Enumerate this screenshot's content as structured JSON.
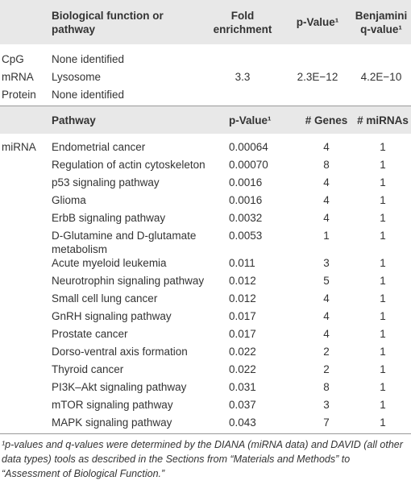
{
  "section1": {
    "header": {
      "function": "Biological function or pathway",
      "fold": "Fold enrichment",
      "p_value": "p-Value¹",
      "q_value": "Benjamini q-value¹"
    },
    "rows": [
      {
        "type": "CpG",
        "function": "None identified"
      },
      {
        "type": "mRNA",
        "function": "Lysosome",
        "fold": "3.3",
        "p_value": "2.3E−12",
        "q_value": "4.2E−10"
      },
      {
        "type": "Protein",
        "function": "None identified"
      }
    ]
  },
  "section2": {
    "header": {
      "pathway": "Pathway",
      "p_value": "p-Value¹",
      "genes": "# Genes",
      "mirnas": "# miRNAs"
    },
    "type": "miRNA",
    "rows": [
      [
        "Endometrial cancer",
        "0.00064",
        4,
        1
      ],
      [
        "Regulation of actin cytoskeleton",
        "0.00070",
        8,
        1
      ],
      [
        "p53 signaling pathway",
        "0.0016",
        4,
        1
      ],
      [
        "Glioma",
        "0.0016",
        4,
        1
      ],
      [
        "ErbB signaling pathway",
        "0.0032",
        4,
        1
      ],
      [
        "D-Glutamine and D-glutamate metabolism",
        "0.0053",
        1,
        1
      ],
      [
        "Acute myeloid leukemia",
        "0.011",
        3,
        1
      ],
      [
        "Neurotrophin signaling pathway",
        "0.012",
        5,
        1
      ],
      [
        "Small cell lung cancer",
        "0.012",
        4,
        1
      ],
      [
        "GnRH signaling pathway",
        "0.017",
        4,
        1
      ],
      [
        "Prostate cancer",
        "0.017",
        4,
        1
      ],
      [
        "Dorso-ventral axis formation",
        "0.022",
        2,
        1
      ],
      [
        "Thyroid cancer",
        "0.022",
        2,
        1
      ],
      [
        "PI3K–Akt signaling pathway",
        "0.031",
        8,
        1
      ],
      [
        "mTOR signaling pathway",
        "0.037",
        3,
        1
      ],
      [
        "MAPK signaling pathway",
        "0.043",
        7,
        1
      ]
    ]
  },
  "footnote": "¹p-values and q-values were determined by the DIANA (miRNA data) and DAVID (all other data types) tools as described in the Sections from “Materials and Methods” to “Assessment of Biological Function.”"
}
